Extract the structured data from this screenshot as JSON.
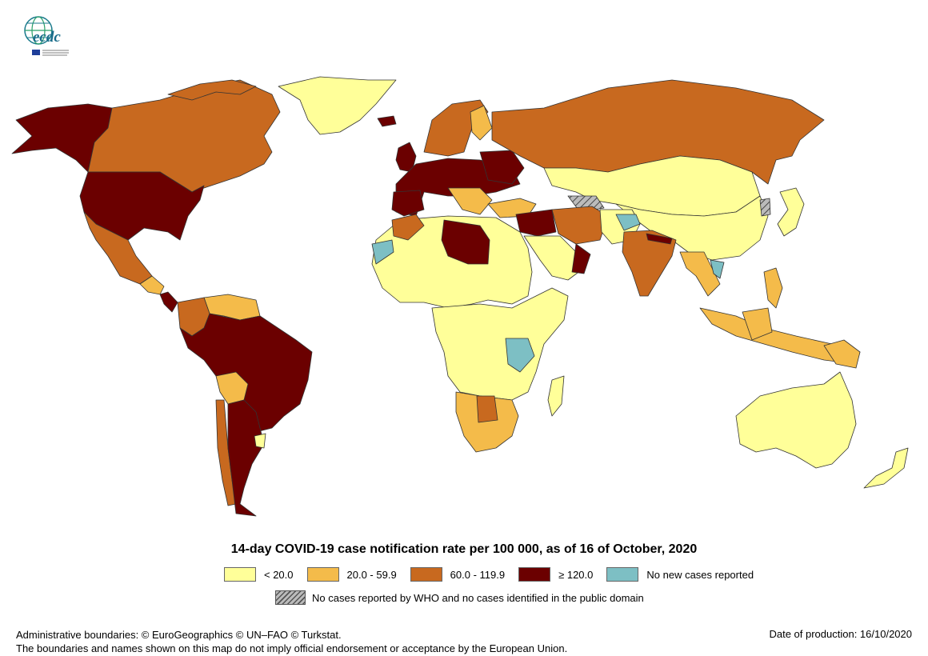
{
  "logo": {
    "text": "ecdc",
    "icon": "ecdc-globe-logo"
  },
  "colors": {
    "lt20": "#ffff99",
    "r20_60": "#f4bb4a",
    "r60_120": "#c8691f",
    "ge120": "#6b0000",
    "no_new": "#7dbfc4",
    "no_data": "#aaaaaa",
    "border": "#333333"
  },
  "map": {
    "title": "14-day COVID-19 case notification rate per 100 000,  as of 16 of October, 2020",
    "legend": [
      {
        "label": "< 20.0",
        "color_key": "lt20"
      },
      {
        "label": "20.0 - 59.9",
        "color_key": "r20_60"
      },
      {
        "label": "60.0 - 119.9",
        "color_key": "r60_120"
      },
      {
        "label": "≥ 120.0",
        "color_key": "ge120"
      },
      {
        "label": "No new cases reported",
        "color_key": "no_new"
      }
    ],
    "no_data_label": "No cases reported by WHO and no cases identified in the public domain"
  },
  "footer": {
    "line1": "Administrative boundaries: © EuroGeographics © UN–FAO © Turkstat.",
    "line2": "The boundaries and names shown on this map do not imply official endorsement or acceptance by the European Union.",
    "date": "Date of production: 16/10/2020"
  }
}
